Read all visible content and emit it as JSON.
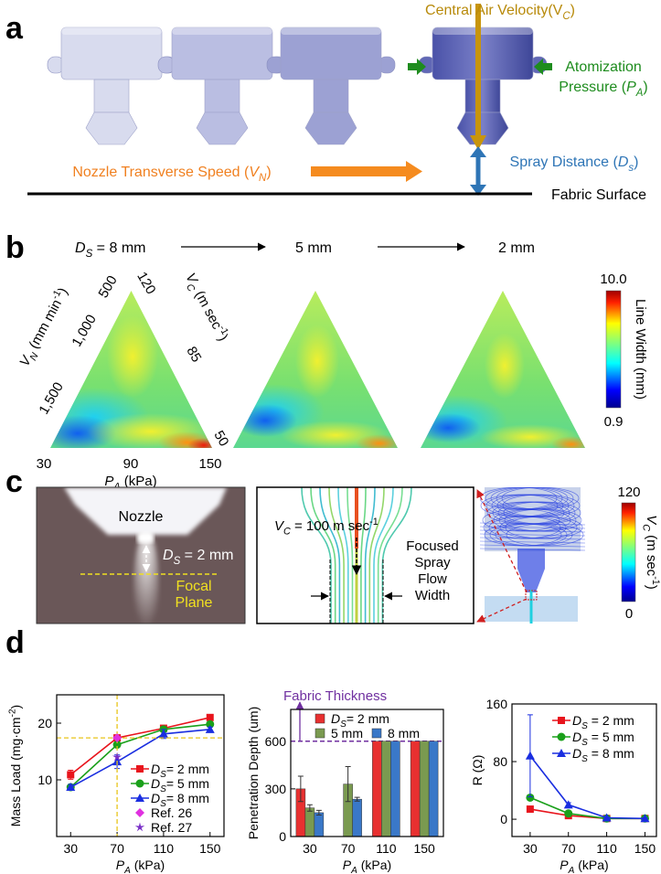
{
  "figure": {
    "panel_labels": [
      "a",
      "b",
      "c",
      "d"
    ],
    "panel_a": {
      "central_air_velocity": [
        "Central Air Velocity(V",
        {
          "sub": "C"
        },
        ")"
      ],
      "atomization": "Atomization",
      "pressure": [
        "Pressure (",
        {
          "i": "P"
        },
        {
          "sub": "A"
        },
        ")"
      ],
      "nozzle_transverse_speed": [
        "Nozzle Transverse  Speed (",
        {
          "i": "V"
        },
        {
          "sub": "N"
        },
        ")"
      ],
      "spray_distance": [
        "Spray Distance (",
        {
          "i": "D"
        },
        {
          "sub": "s"
        },
        ")"
      ],
      "fabric_surface": "Fabric Surface"
    },
    "panel_b": {
      "distances": [
        [
          {
            "i": "D"
          },
          {
            "sub": "S"
          },
          " = 8 mm"
        ],
        "5 mm",
        "2 mm"
      ],
      "vn_axis": {
        "title": [
          {
            "i": "V"
          },
          {
            "sub": "N"
          },
          " (mm min",
          {
            "sup": "-1"
          },
          ")"
        ],
        "ticks": [
          "500",
          "1,000",
          "1,500"
        ]
      },
      "vc_axis": {
        "title": [
          {
            "i": "V"
          },
          {
            "sub": "C"
          },
          " (m sec",
          {
            "sup": "-1"
          },
          ")"
        ],
        "ticks": [
          "120",
          "85",
          "50"
        ]
      },
      "pa_axis": {
        "title": [
          {
            "i": "P"
          },
          {
            "sub": "A"
          },
          " (kPa)"
        ],
        "ticks": [
          "30",
          "90",
          "150"
        ]
      },
      "colorbar": {
        "max": "10.0",
        "min": "0.9",
        "title": "Line Width (mm)"
      }
    },
    "panel_c": {
      "nozzle": "Nozzle",
      "distance": [
        {
          "i": "D"
        },
        {
          "sub": "S"
        },
        " = 2 mm"
      ],
      "focal_plane": [
        "Focal",
        "Plane"
      ],
      "velocity": [
        {
          "i": "V"
        },
        {
          "sub": "C"
        },
        " = 100 m sec",
        {
          "sup": "-1"
        }
      ],
      "flow_width": [
        "Focused",
        "Spray",
        "Flow",
        "Width"
      ],
      "colorbar": {
        "max": "120",
        "min": "0",
        "title": [
          {
            "i": "V"
          },
          {
            "sub": "C"
          },
          " (m sec",
          {
            "sup": "-1"
          },
          ")"
        ]
      }
    }
  },
  "chart_data": [
    {
      "type": "line",
      "y_label": [
        "Mass Load (mg·cm",
        {
          "sup": "-2"
        },
        ")"
      ],
      "x_label": [
        {
          "i": "P"
        },
        {
          "sub": "A"
        },
        " (kPa)"
      ],
      "x": [
        30,
        70,
        110,
        150
      ],
      "xlim": [
        18,
        162
      ],
      "xticks": [
        30,
        70,
        110,
        150
      ],
      "ylim": [
        0,
        25
      ],
      "yticks": [
        10,
        20
      ],
      "legend": "lower right",
      "guide_color": "#e8c41a",
      "series": [
        {
          "name": [
            {
              "i": "D"
            },
            {
              "sub": "S"
            },
            "= 2 mm"
          ],
          "color": "#e8141c",
          "marker": "square",
          "values": [
            10.9,
            17.4,
            19.1,
            21.0
          ],
          "errors": [
            0.8,
            0.5,
            0.4,
            0.3
          ]
        },
        {
          "name": [
            {
              "i": "D"
            },
            {
              "sub": "S"
            },
            "= 5 mm"
          ],
          "color": "#1aa01a",
          "marker": "circle",
          "values": [
            8.7,
            16.2,
            18.9,
            19.8
          ],
          "errors": [
            0.5,
            0.5,
            0.4,
            0.3
          ]
        },
        {
          "name": [
            {
              "i": "D"
            },
            {
              "sub": "S"
            },
            "= 8 mm"
          ],
          "color": "#1a2ee0",
          "marker": "triangle",
          "values": [
            8.7,
            13.2,
            18.1,
            18.9
          ],
          "errors": [
            0.5,
            1.2,
            0.8,
            0.4
          ]
        },
        {
          "name": "Ref. 26",
          "color": "#e030e0",
          "marker": "diamond",
          "x": [
            70
          ],
          "values": [
            17.4
          ],
          "guides": true
        },
        {
          "name": "Ref. 27",
          "color": "#7a30c8",
          "marker": "star",
          "x": [
            70
          ],
          "values": [
            14.0
          ]
        }
      ]
    },
    {
      "type": "bar",
      "y_label": "Penetration Depth (um)",
      "x_label": [
        {
          "i": "P"
        },
        {
          "sub": "A"
        },
        " (kPa)"
      ],
      "categories": [
        "30",
        "70",
        "110",
        "150"
      ],
      "ylim": [
        0,
        800
      ],
      "yticks": [
        0,
        300,
        600
      ],
      "legend": "upper center",
      "threshold": {
        "label": "Fabric Thickness",
        "value": 600,
        "color": "#7030a0"
      },
      "series": [
        {
          "name": [
            {
              "i": "D"
            },
            {
              "sub": "S"
            },
            "= 2 mm"
          ],
          "color": "#e83030",
          "values": [
            300,
            null,
            600,
            600
          ],
          "errors": [
            80,
            null,
            null,
            null
          ]
        },
        {
          "name": "5 mm",
          "color": "#7a9a50",
          "values": [
            180,
            330,
            600,
            600
          ],
          "errors": [
            20,
            110,
            null,
            null
          ]
        },
        {
          "name": "8 mm",
          "color": "#3a78c8",
          "values": [
            150,
            235,
            600,
            600
          ],
          "errors": [
            15,
            12,
            null,
            null
          ]
        }
      ]
    },
    {
      "type": "line",
      "y_label": "R (Ω)",
      "x_label": [
        {
          "i": "P"
        },
        {
          "sub": "A"
        },
        " (kPa)"
      ],
      "x": [
        30,
        70,
        110,
        150
      ],
      "xlim": [
        11,
        162
      ],
      "xticks": [
        30,
        70,
        110,
        150
      ],
      "ylim": [
        -24,
        160
      ],
      "yticks": [
        0,
        80,
        160
      ],
      "legend": "upper right",
      "series": [
        {
          "name": [
            {
              "i": "D"
            },
            {
              "sub": "S"
            },
            " = 2 mm"
          ],
          "color": "#e8141c",
          "marker": "square",
          "values": [
            14,
            5,
            1,
            1
          ],
          "errors": [
            2,
            1,
            1,
            1
          ]
        },
        {
          "name": [
            {
              "i": "D"
            },
            {
              "sub": "S"
            },
            " = 5 mm"
          ],
          "color": "#1aa01a",
          "marker": "circle",
          "values": [
            30,
            8,
            1,
            1
          ],
          "errors": [
            3,
            1,
            1,
            1
          ]
        },
        {
          "name": [
            {
              "i": "D"
            },
            {
              "sub": "S"
            },
            " = 8 mm"
          ],
          "color": "#1a2ee0",
          "marker": "triangle",
          "values": [
            88,
            20,
            2,
            1
          ],
          "errors": [
            57,
            3,
            1,
            1
          ]
        }
      ]
    }
  ]
}
